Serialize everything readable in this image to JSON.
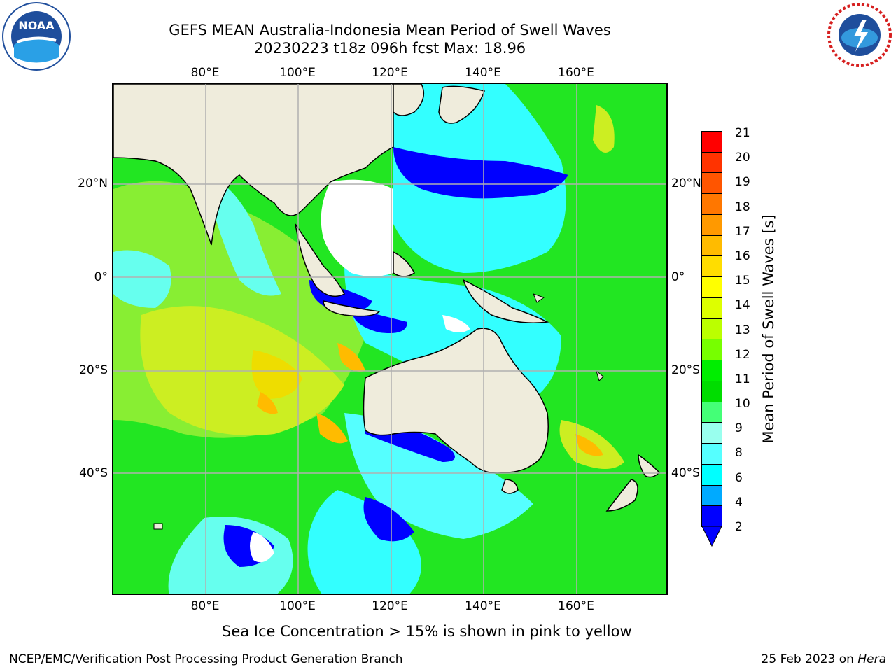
{
  "title_line1": "GEFS MEAN Australia-Indonesia Mean Period of Swell Waves",
  "title_line2": "20230223 t18z 096h fcst   Max: 18.96",
  "map": {
    "longitude_ticks": [
      "80°E",
      "100°E",
      "120°E",
      "140°E",
      "160°E"
    ],
    "latitude_ticks": [
      "20°N",
      "0°",
      "20°S",
      "40°S"
    ],
    "land_color": "#efecdc",
    "no_swell_color": "#ffffff",
    "grid_color": "#b0b0b0"
  },
  "colorbar": {
    "label": "Mean Period of Swell Waves [s]",
    "tick_labels": [
      "21",
      "20",
      "19",
      "18",
      "17",
      "16",
      "15",
      "14",
      "13",
      "12",
      "11",
      "10",
      "9",
      "8",
      "6",
      "4",
      "2"
    ],
    "colors_top_to_bottom": [
      "#ff0000",
      "#ff3300",
      "#ff5500",
      "#ff7700",
      "#ff9900",
      "#ffbb00",
      "#ffdd00",
      "#ffff00",
      "#ddff00",
      "#bbff00",
      "#77ff00",
      "#00ee00",
      "#00dd00",
      "#44ff77",
      "#99ffee",
      "#55ffff",
      "#00ffff",
      "#00aaff",
      "#0000ff"
    ]
  },
  "subnote": "Sea Ice Concentration > 15% is shown in pink to yellow",
  "footer_left": "NCEP/EMC/Verification Post Processing Product Generation Branch",
  "footer_date": "25 Feb 2023 on ",
  "footer_host": "Hera",
  "logos": {
    "left": "noaa-logo",
    "right": "national-weather-service-logo"
  }
}
